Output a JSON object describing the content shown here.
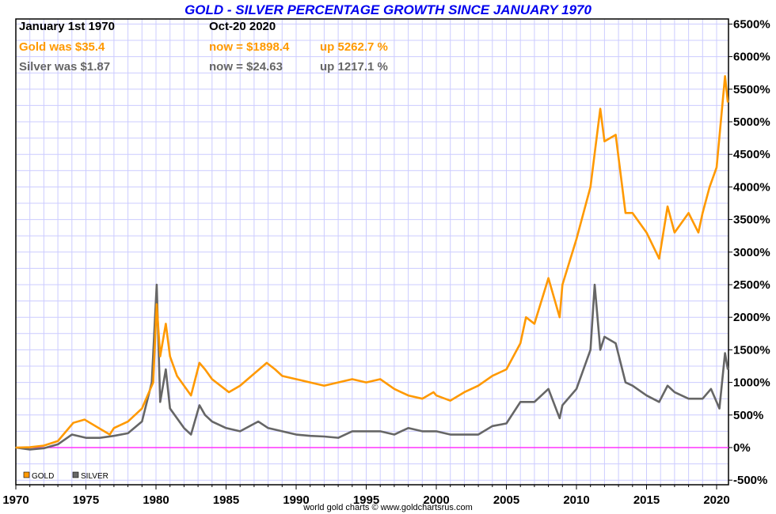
{
  "chart_data": {
    "type": "line",
    "title": "GOLD - SILVER PERCENTAGE GROWTH SINCE JANUARY 1970",
    "info": {
      "start_date": "January 1st 1970",
      "end_date": "Oct-20  2020",
      "gold_start": "Gold was $35.4",
      "gold_now": "now = $1898.4",
      "gold_up": "up 5262.7 %",
      "silver_start": "Silver was $1.87",
      "silver_now": "now = $24.63",
      "silver_up": "up 1217.1 %"
    },
    "credit": "world gold charts © www.goldchartsrus.com",
    "xlim": [
      1970,
      2020.8
    ],
    "ylim": [
      -500,
      6500
    ],
    "x_ticks": [
      "1970",
      "1975",
      "1980",
      "1985",
      "1990",
      "1995",
      "2000",
      "2005",
      "2010",
      "2015",
      "2020"
    ],
    "y_ticks": [
      "6500%",
      "6000%",
      "5500%",
      "5000%",
      "4500%",
      "4000%",
      "3500%",
      "3000%",
      "2500%",
      "2000%",
      "1500%",
      "1000%",
      "500%",
      "0%",
      "-500%"
    ],
    "grid": true,
    "legend_position": "bottom-left",
    "colors": {
      "gold": "#ff9900",
      "silver": "#666666",
      "zero_line": "#ff33ff",
      "grid": "#ccccff",
      "title": "#0000ee"
    },
    "series": [
      {
        "name": "GOLD",
        "color": "#ff9900",
        "points": [
          [
            1970,
            0
          ],
          [
            1971,
            5
          ],
          [
            1972,
            30
          ],
          [
            1973,
            100
          ],
          [
            1974.1,
            380
          ],
          [
            1974.9,
            430
          ],
          [
            1976.7,
            200
          ],
          [
            1977,
            300
          ],
          [
            1978,
            400
          ],
          [
            1979,
            600
          ],
          [
            1979.8,
            1000
          ],
          [
            1980.05,
            2200
          ],
          [
            1980.3,
            1400
          ],
          [
            1980.7,
            1900
          ],
          [
            1981,
            1400
          ],
          [
            1981.5,
            1100
          ],
          [
            1982.5,
            800
          ],
          [
            1983.1,
            1300
          ],
          [
            1983.5,
            1200
          ],
          [
            1984,
            1050
          ],
          [
            1985.2,
            850
          ],
          [
            1986,
            950
          ],
          [
            1987.9,
            1300
          ],
          [
            1988.5,
            1200
          ],
          [
            1989,
            1100
          ],
          [
            1990,
            1050
          ],
          [
            1991,
            1000
          ],
          [
            1992,
            950
          ],
          [
            1993,
            1000
          ],
          [
            1994,
            1050
          ],
          [
            1995,
            1000
          ],
          [
            1996,
            1050
          ],
          [
            1997,
            900
          ],
          [
            1998,
            800
          ],
          [
            1999,
            750
          ],
          [
            1999.8,
            850
          ],
          [
            2000,
            800
          ],
          [
            2001,
            720
          ],
          [
            2002,
            850
          ],
          [
            2003,
            950
          ],
          [
            2004,
            1100
          ],
          [
            2005,
            1200
          ],
          [
            2006,
            1600
          ],
          [
            2006.4,
            2000
          ],
          [
            2007,
            1900
          ],
          [
            2008,
            2600
          ],
          [
            2008.8,
            2000
          ],
          [
            2009,
            2500
          ],
          [
            2010,
            3200
          ],
          [
            2011,
            4000
          ],
          [
            2011.7,
            5200
          ],
          [
            2012,
            4700
          ],
          [
            2012.8,
            4800
          ],
          [
            2013.5,
            3600
          ],
          [
            2014,
            3600
          ],
          [
            2015,
            3300
          ],
          [
            2015.9,
            2900
          ],
          [
            2016.5,
            3700
          ],
          [
            2017,
            3300
          ],
          [
            2018,
            3600
          ],
          [
            2018.7,
            3300
          ],
          [
            2019,
            3600
          ],
          [
            2019.5,
            4000
          ],
          [
            2020,
            4300
          ],
          [
            2020.6,
            5700
          ],
          [
            2020.8,
            5300
          ]
        ]
      },
      {
        "name": "SILVER",
        "color": "#666666",
        "points": [
          [
            1970,
            0
          ],
          [
            1971,
            -30
          ],
          [
            1972,
            -10
          ],
          [
            1973,
            50
          ],
          [
            1974,
            200
          ],
          [
            1975,
            150
          ],
          [
            1976,
            150
          ],
          [
            1977,
            180
          ],
          [
            1978,
            220
          ],
          [
            1979,
            400
          ],
          [
            1979.7,
            1000
          ],
          [
            1980.05,
            2500
          ],
          [
            1980.3,
            700
          ],
          [
            1980.7,
            1200
          ],
          [
            1981,
            600
          ],
          [
            1982,
            300
          ],
          [
            1982.5,
            200
          ],
          [
            1983.1,
            650
          ],
          [
            1983.5,
            500
          ],
          [
            1984,
            400
          ],
          [
            1985,
            300
          ],
          [
            1986,
            250
          ],
          [
            1987.3,
            400
          ],
          [
            1988,
            300
          ],
          [
            1989,
            250
          ],
          [
            1990,
            200
          ],
          [
            1991,
            180
          ],
          [
            1992,
            170
          ],
          [
            1993,
            150
          ],
          [
            1994,
            250
          ],
          [
            1995,
            250
          ],
          [
            1996,
            250
          ],
          [
            1997,
            200
          ],
          [
            1998,
            300
          ],
          [
            1999,
            250
          ],
          [
            2000,
            250
          ],
          [
            2001,
            200
          ],
          [
            2002,
            200
          ],
          [
            2003,
            200
          ],
          [
            2004,
            330
          ],
          [
            2005,
            370
          ],
          [
            2006,
            700
          ],
          [
            2007,
            700
          ],
          [
            2008,
            900
          ],
          [
            2008.8,
            450
          ],
          [
            2009,
            650
          ],
          [
            2010,
            900
          ],
          [
            2011,
            1500
          ],
          [
            2011.3,
            2500
          ],
          [
            2011.7,
            1500
          ],
          [
            2012,
            1700
          ],
          [
            2012.8,
            1600
          ],
          [
            2013.5,
            1000
          ],
          [
            2014,
            950
          ],
          [
            2015,
            800
          ],
          [
            2015.9,
            700
          ],
          [
            2016.5,
            950
          ],
          [
            2017,
            850
          ],
          [
            2018,
            750
          ],
          [
            2019,
            750
          ],
          [
            2019.6,
            900
          ],
          [
            2020.2,
            600
          ],
          [
            2020.6,
            1450
          ],
          [
            2020.8,
            1200
          ]
        ]
      }
    ]
  }
}
